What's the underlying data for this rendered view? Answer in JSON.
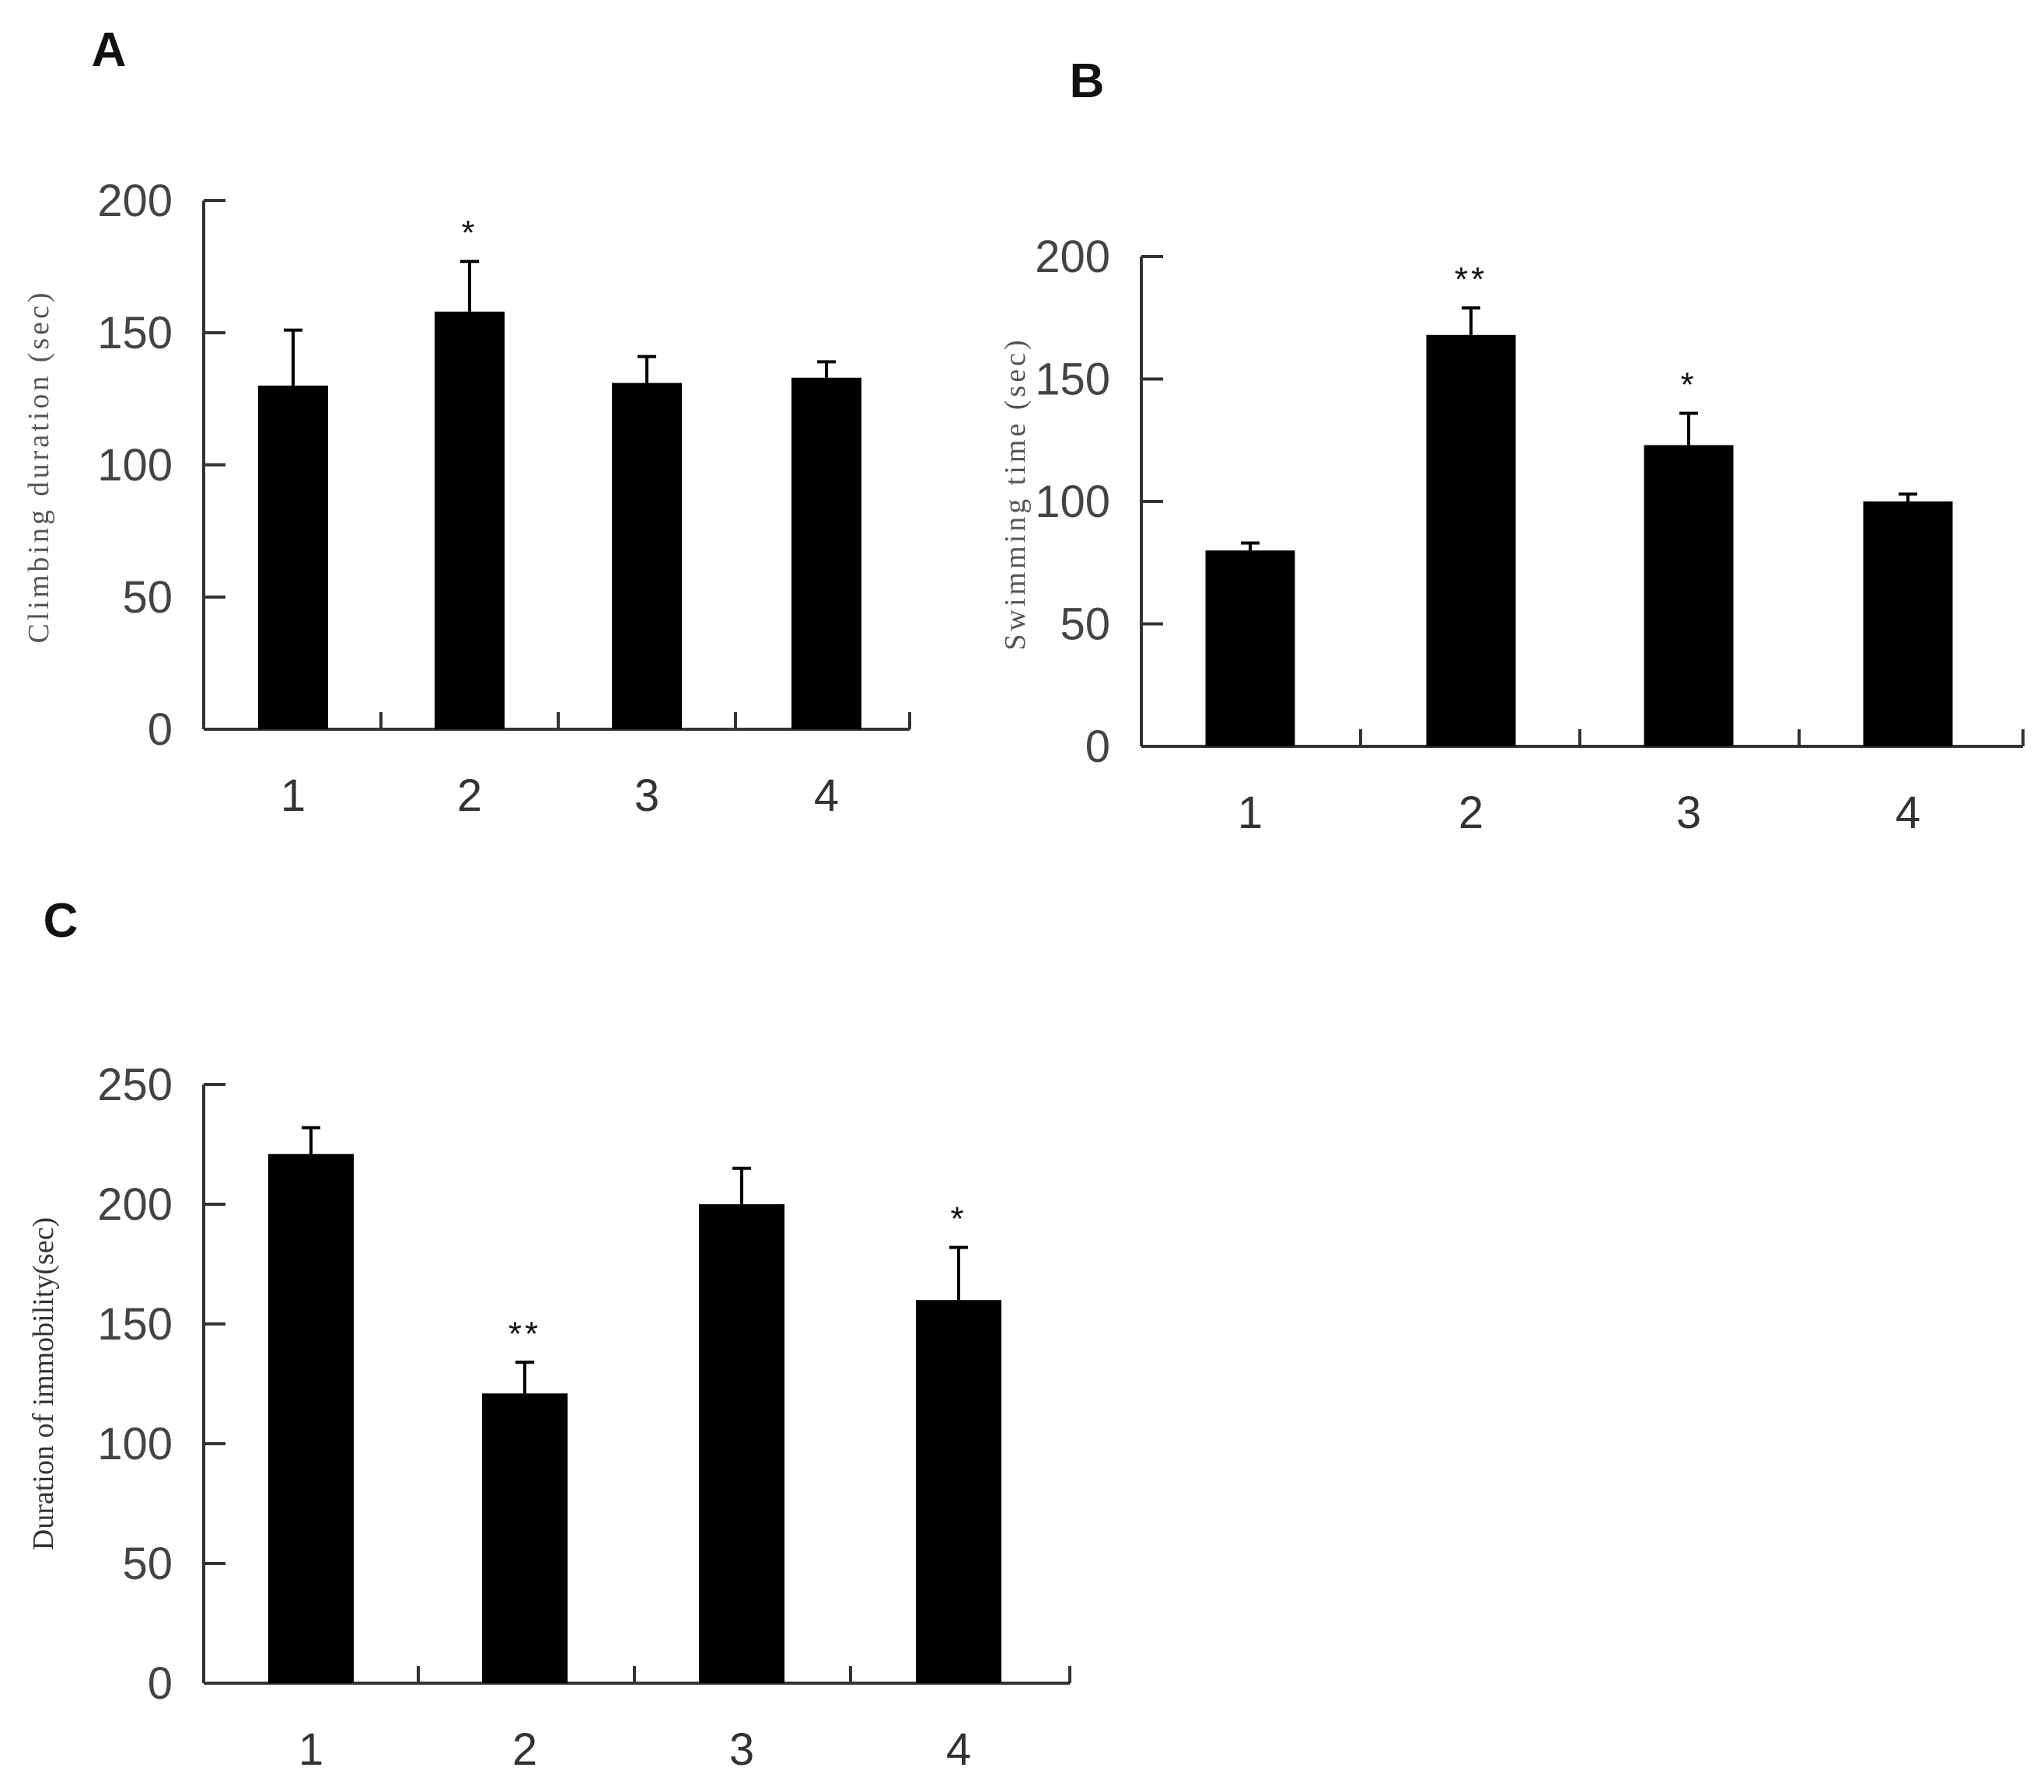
{
  "colors": {
    "bar": "#000000",
    "axis": "#333333",
    "background": "#ffffff"
  },
  "chart_data": [
    {
      "panel": "A",
      "type": "bar",
      "categories": [
        "1",
        "2",
        "3",
        "4"
      ],
      "values": [
        130,
        158,
        131,
        133
      ],
      "errors": [
        21,
        19,
        10,
        6
      ],
      "significance": [
        "",
        "*",
        "",
        ""
      ],
      "ylabel": "Climbing duration (sec)",
      "xlabel": "",
      "ylim": [
        0,
        200
      ],
      "yticks": [
        "0",
        "50",
        "100",
        "150",
        "200"
      ],
      "grid": false,
      "legend": "none"
    },
    {
      "panel": "B",
      "type": "bar",
      "categories": [
        "1",
        "2",
        "3",
        "4"
      ],
      "values": [
        80,
        168,
        123,
        100
      ],
      "errors": [
        3,
        11,
        13,
        3
      ],
      "significance": [
        "",
        "**",
        "*",
        ""
      ],
      "ylabel": "Swimming time (sec)",
      "xlabel": "",
      "ylim": [
        0,
        200
      ],
      "yticks": [
        "0",
        "50",
        "100",
        "150",
        "200"
      ],
      "grid": false,
      "legend": "none"
    },
    {
      "panel": "C",
      "type": "bar",
      "categories": [
        "1",
        "2",
        "3",
        "4"
      ],
      "values": [
        221,
        121,
        200,
        160
      ],
      "errors": [
        11,
        13,
        15,
        22
      ],
      "significance": [
        "",
        "**",
        "",
        "*"
      ],
      "ylabel": "Duration of immobility(sec)",
      "xlabel": "",
      "ylim": [
        0,
        250
      ],
      "yticks": [
        "0",
        "50",
        "100",
        "150",
        "200",
        "250"
      ],
      "grid": false,
      "legend": "none"
    }
  ]
}
